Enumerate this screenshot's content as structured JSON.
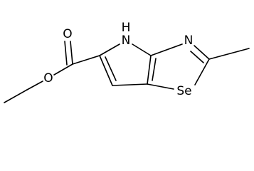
{
  "atoms": {
    "carbonyl_oxygen": "O",
    "ester_oxygen": "O",
    "pyrrole_hydrogen": "H",
    "pyrrole_nitrogen": "N",
    "thiazole_nitrogen": "N",
    "selenium": "Se"
  }
}
